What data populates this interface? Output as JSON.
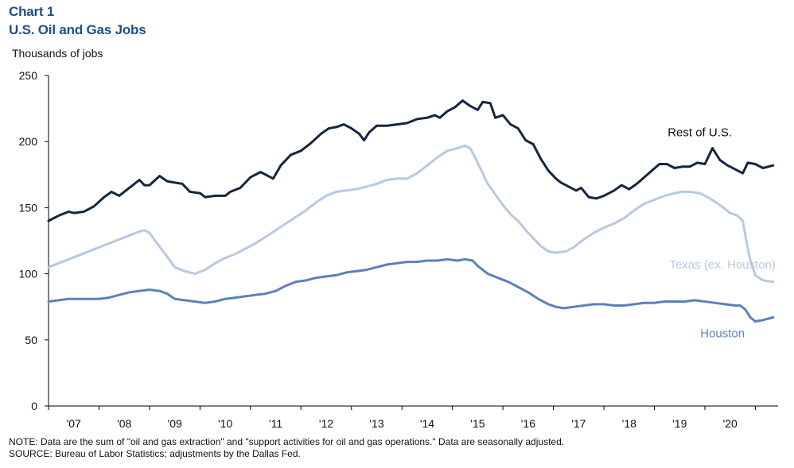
{
  "header": {
    "chart_number": "Chart 1",
    "title": "U.S. Oil and Gas Jobs"
  },
  "notes": {
    "note": "NOTE: Data are the sum of \"oil and gas extraction\" and \"support activities for oil and gas operations.\" Data are seasonally adjusted.",
    "source": "SOURCE: Bureau of Labor Statistics; adjustments by the Dallas Fed."
  },
  "colors": {
    "rest_of_us": "#13263f",
    "texas": "#b7c9e2",
    "houston": "#5b80bb",
    "title": "#1f4e8c"
  },
  "chart_data": {
    "type": "line",
    "title": "U.S. Oil and Gas Jobs",
    "ylabel": "Thousands  of jobs",
    "xlabel": "",
    "ylim": [
      0,
      250
    ],
    "yticks": [
      0,
      50,
      100,
      150,
      200,
      250
    ],
    "xlim": [
      2006.5,
      2020.95
    ],
    "xticks": [
      {
        "value": 2007,
        "label": "'07"
      },
      {
        "value": 2008,
        "label": "'08"
      },
      {
        "value": 2009,
        "label": "'09"
      },
      {
        "value": 2010,
        "label": "'10"
      },
      {
        "value": 2011,
        "label": "'11"
      },
      {
        "value": 2012,
        "label": "'12"
      },
      {
        "value": 2013,
        "label": "'13"
      },
      {
        "value": 2014,
        "label": "'14"
      },
      {
        "value": 2015,
        "label": "'15"
      },
      {
        "value": 2016,
        "label": "'16"
      },
      {
        "value": 2017,
        "label": "'17"
      },
      {
        "value": 2018,
        "label": "'18"
      },
      {
        "value": 2019,
        "label": "'19"
      },
      {
        "value": 2020,
        "label": "'20"
      }
    ],
    "grid": false,
    "legend": "inline labels",
    "series": [
      {
        "name": "Rest of U.S.",
        "color_key": "rest_of_us",
        "label_pos": [
          2019.4,
          204
        ],
        "points": [
          [
            2006.5,
            140
          ],
          [
            2006.7,
            144
          ],
          [
            2006.9,
            147
          ],
          [
            2007.0,
            146
          ],
          [
            2007.2,
            147
          ],
          [
            2007.4,
            151
          ],
          [
            2007.6,
            158
          ],
          [
            2007.75,
            162
          ],
          [
            2007.9,
            159
          ],
          [
            2008.1,
            165
          ],
          [
            2008.3,
            171
          ],
          [
            2008.4,
            167
          ],
          [
            2008.5,
            167
          ],
          [
            2008.7,
            174
          ],
          [
            2008.85,
            170
          ],
          [
            2009.0,
            169
          ],
          [
            2009.15,
            168
          ],
          [
            2009.3,
            162
          ],
          [
            2009.5,
            161
          ],
          [
            2009.6,
            158
          ],
          [
            2009.8,
            159
          ],
          [
            2010.0,
            159
          ],
          [
            2010.1,
            162
          ],
          [
            2010.3,
            165
          ],
          [
            2010.5,
            173
          ],
          [
            2010.7,
            177
          ],
          [
            2010.8,
            175
          ],
          [
            2010.95,
            172
          ],
          [
            2011.1,
            182
          ],
          [
            2011.3,
            190
          ],
          [
            2011.5,
            193
          ],
          [
            2011.7,
            199
          ],
          [
            2011.9,
            206
          ],
          [
            2012.05,
            210
          ],
          [
            2012.2,
            211
          ],
          [
            2012.35,
            213
          ],
          [
            2012.5,
            210
          ],
          [
            2012.65,
            206
          ],
          [
            2012.75,
            201
          ],
          [
            2012.85,
            207
          ],
          [
            2013.0,
            212
          ],
          [
            2013.2,
            212
          ],
          [
            2013.4,
            213
          ],
          [
            2013.6,
            214
          ],
          [
            2013.8,
            217
          ],
          [
            2014.0,
            218
          ],
          [
            2014.15,
            220
          ],
          [
            2014.25,
            218
          ],
          [
            2014.4,
            223
          ],
          [
            2014.55,
            226
          ],
          [
            2014.7,
            231
          ],
          [
            2014.85,
            227
          ],
          [
            2015.0,
            224
          ],
          [
            2015.1,
            230
          ],
          [
            2015.25,
            229
          ],
          [
            2015.35,
            218
          ],
          [
            2015.5,
            220
          ],
          [
            2015.65,
            213
          ],
          [
            2015.8,
            210
          ],
          [
            2015.95,
            201
          ],
          [
            2016.1,
            198
          ],
          [
            2016.25,
            187
          ],
          [
            2016.4,
            178
          ],
          [
            2016.55,
            172
          ],
          [
            2016.65,
            169
          ],
          [
            2016.8,
            166
          ],
          [
            2016.95,
            163
          ],
          [
            2017.05,
            165
          ],
          [
            2017.2,
            158
          ],
          [
            2017.35,
            157
          ],
          [
            2017.5,
            159
          ],
          [
            2017.7,
            163
          ],
          [
            2017.85,
            167
          ],
          [
            2018.0,
            164
          ],
          [
            2018.15,
            168
          ],
          [
            2018.3,
            173
          ],
          [
            2018.45,
            178
          ],
          [
            2018.6,
            183
          ],
          [
            2018.75,
            183
          ],
          [
            2018.9,
            180
          ],
          [
            2019.05,
            181
          ],
          [
            2019.2,
            181
          ],
          [
            2019.35,
            184
          ],
          [
            2019.5,
            183
          ],
          [
            2019.65,
            195
          ],
          [
            2019.8,
            186
          ],
          [
            2019.95,
            182
          ],
          [
            2020.1,
            179
          ],
          [
            2020.25,
            176
          ],
          [
            2020.35,
            184
          ],
          [
            2020.5,
            183
          ],
          [
            2020.65,
            180
          ],
          [
            2020.85,
            182
          ]
        ]
      },
      {
        "name": "Texas (ex. Houston)",
        "color_key": "texas",
        "label_pos": [
          2019.85,
          104
        ],
        "points": [
          [
            2006.5,
            105
          ],
          [
            2006.7,
            108
          ],
          [
            2006.9,
            111
          ],
          [
            2007.1,
            114
          ],
          [
            2007.3,
            117
          ],
          [
            2007.5,
            120
          ],
          [
            2007.7,
            123
          ],
          [
            2007.9,
            126
          ],
          [
            2008.1,
            129
          ],
          [
            2008.3,
            132
          ],
          [
            2008.4,
            133
          ],
          [
            2008.5,
            131
          ],
          [
            2008.65,
            123
          ],
          [
            2008.85,
            113
          ],
          [
            2009.0,
            105
          ],
          [
            2009.2,
            102
          ],
          [
            2009.4,
            100
          ],
          [
            2009.6,
            103
          ],
          [
            2009.8,
            108
          ],
          [
            2010.0,
            112
          ],
          [
            2010.2,
            115
          ],
          [
            2010.4,
            119
          ],
          [
            2010.6,
            123
          ],
          [
            2010.8,
            128
          ],
          [
            2011.0,
            133
          ],
          [
            2011.2,
            138
          ],
          [
            2011.4,
            143
          ],
          [
            2011.6,
            148
          ],
          [
            2011.8,
            154
          ],
          [
            2012.0,
            159
          ],
          [
            2012.2,
            162
          ],
          [
            2012.4,
            163
          ],
          [
            2012.6,
            164
          ],
          [
            2012.8,
            166
          ],
          [
            2013.0,
            168
          ],
          [
            2013.2,
            171
          ],
          [
            2013.4,
            172
          ],
          [
            2013.6,
            172
          ],
          [
            2013.8,
            176
          ],
          [
            2014.0,
            182
          ],
          [
            2014.2,
            188
          ],
          [
            2014.4,
            193
          ],
          [
            2014.6,
            195
          ],
          [
            2014.75,
            197
          ],
          [
            2014.85,
            195
          ],
          [
            2014.95,
            188
          ],
          [
            2015.05,
            180
          ],
          [
            2015.2,
            168
          ],
          [
            2015.35,
            160
          ],
          [
            2015.5,
            152
          ],
          [
            2015.65,
            145
          ],
          [
            2015.8,
            140
          ],
          [
            2015.95,
            133
          ],
          [
            2016.1,
            127
          ],
          [
            2016.25,
            121
          ],
          [
            2016.4,
            117
          ],
          [
            2016.55,
            116
          ],
          [
            2016.75,
            117
          ],
          [
            2016.9,
            120
          ],
          [
            2017.1,
            126
          ],
          [
            2017.3,
            131
          ],
          [
            2017.5,
            135
          ],
          [
            2017.7,
            138
          ],
          [
            2017.9,
            142
          ],
          [
            2018.1,
            148
          ],
          [
            2018.3,
            153
          ],
          [
            2018.5,
            156
          ],
          [
            2018.7,
            159
          ],
          [
            2018.9,
            161
          ],
          [
            2019.05,
            162
          ],
          [
            2019.2,
            162
          ],
          [
            2019.4,
            161
          ],
          [
            2019.6,
            157
          ],
          [
            2019.8,
            152
          ],
          [
            2020.0,
            146
          ],
          [
            2020.15,
            144
          ],
          [
            2020.25,
            140
          ],
          [
            2020.32,
            125
          ],
          [
            2020.4,
            110
          ],
          [
            2020.5,
            99
          ],
          [
            2020.65,
            95
          ],
          [
            2020.85,
            94
          ]
        ]
      },
      {
        "name": "Houston",
        "color_key": "houston",
        "label_pos": [
          2019.85,
          52
        ],
        "points": [
          [
            2006.5,
            79
          ],
          [
            2006.7,
            80
          ],
          [
            2006.9,
            81
          ],
          [
            2007.1,
            81
          ],
          [
            2007.3,
            81
          ],
          [
            2007.5,
            81
          ],
          [
            2007.7,
            82
          ],
          [
            2007.9,
            84
          ],
          [
            2008.1,
            86
          ],
          [
            2008.3,
            87
          ],
          [
            2008.5,
            88
          ],
          [
            2008.7,
            87
          ],
          [
            2008.85,
            85
          ],
          [
            2009.0,
            81
          ],
          [
            2009.2,
            80
          ],
          [
            2009.4,
            79
          ],
          [
            2009.6,
            78
          ],
          [
            2009.8,
            79
          ],
          [
            2010.0,
            81
          ],
          [
            2010.2,
            82
          ],
          [
            2010.4,
            83
          ],
          [
            2010.6,
            84
          ],
          [
            2010.8,
            85
          ],
          [
            2011.0,
            87
          ],
          [
            2011.2,
            91
          ],
          [
            2011.4,
            94
          ],
          [
            2011.6,
            95
          ],
          [
            2011.8,
            97
          ],
          [
            2012.0,
            98
          ],
          [
            2012.2,
            99
          ],
          [
            2012.4,
            101
          ],
          [
            2012.6,
            102
          ],
          [
            2012.8,
            103
          ],
          [
            2013.0,
            105
          ],
          [
            2013.2,
            107
          ],
          [
            2013.4,
            108
          ],
          [
            2013.6,
            109
          ],
          [
            2013.8,
            109
          ],
          [
            2014.0,
            110
          ],
          [
            2014.2,
            110
          ],
          [
            2014.4,
            111
          ],
          [
            2014.6,
            110
          ],
          [
            2014.75,
            111
          ],
          [
            2014.9,
            110
          ],
          [
            2015.0,
            106
          ],
          [
            2015.2,
            100
          ],
          [
            2015.4,
            97
          ],
          [
            2015.6,
            94
          ],
          [
            2015.8,
            90
          ],
          [
            2016.0,
            86
          ],
          [
            2016.2,
            81
          ],
          [
            2016.4,
            77
          ],
          [
            2016.55,
            75
          ],
          [
            2016.7,
            74
          ],
          [
            2016.9,
            75
          ],
          [
            2017.1,
            76
          ],
          [
            2017.3,
            77
          ],
          [
            2017.5,
            77
          ],
          [
            2017.7,
            76
          ],
          [
            2017.9,
            76
          ],
          [
            2018.1,
            77
          ],
          [
            2018.3,
            78
          ],
          [
            2018.5,
            78
          ],
          [
            2018.7,
            79
          ],
          [
            2018.9,
            79
          ],
          [
            2019.1,
            79
          ],
          [
            2019.3,
            80
          ],
          [
            2019.5,
            79
          ],
          [
            2019.7,
            78
          ],
          [
            2019.9,
            77
          ],
          [
            2020.1,
            76
          ],
          [
            2020.2,
            76
          ],
          [
            2020.3,
            73
          ],
          [
            2020.4,
            67
          ],
          [
            2020.5,
            64
          ],
          [
            2020.65,
            65
          ],
          [
            2020.85,
            67
          ]
        ]
      }
    ]
  }
}
